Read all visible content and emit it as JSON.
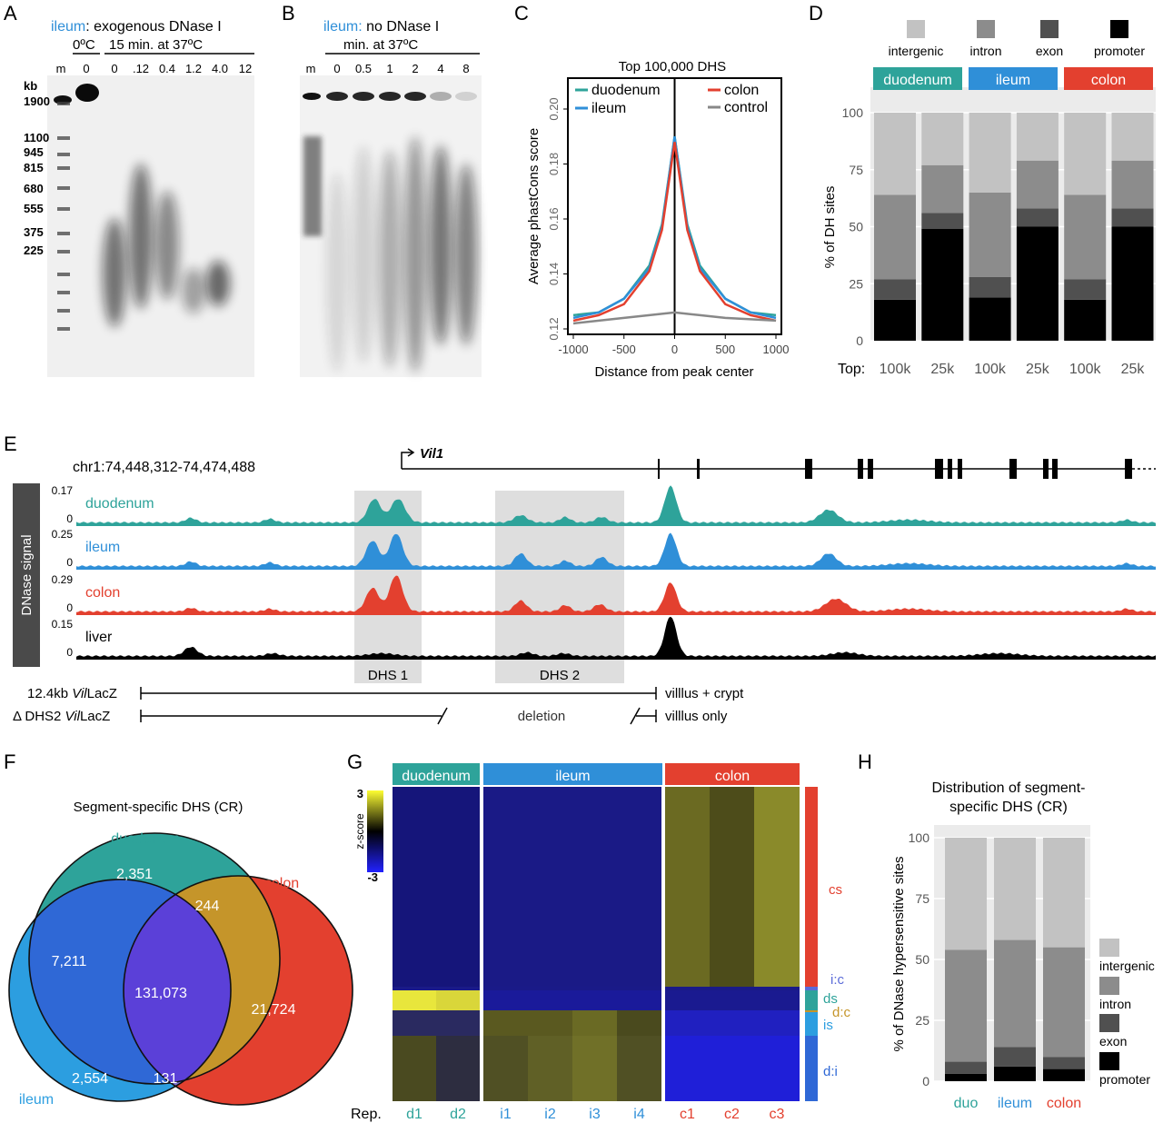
{
  "colors": {
    "duodenum": "#2ea39a",
    "ileum": "#2f8fd8",
    "colon": "#e3402f",
    "control": "#888888",
    "intergenic": "#c2c2c2",
    "intron": "#8c8c8c",
    "exon": "#505050",
    "promoter": "#000000"
  },
  "panelA": {
    "letter": "A",
    "title_tissue": "ileum",
    "title_rest": ": exogenous DNase I",
    "cold": "0ºC",
    "warm": "15 min. at 37ºC",
    "lanes": [
      "m",
      "0",
      "0",
      ".12",
      "0.4",
      "1.2",
      "4.0",
      "12"
    ],
    "kb_label": "kb",
    "markers": [
      "1900",
      "1100",
      "945",
      "815",
      "680",
      "555",
      "375",
      "225"
    ]
  },
  "panelB": {
    "letter": "B",
    "title_tissue": "ileum:",
    "title_rest": " no DNase I",
    "sub": "min. at 37ºC",
    "lanes": [
      "m",
      "0",
      "0.5",
      "1",
      "2",
      "4",
      "8"
    ]
  },
  "panelC": {
    "letter": "C",
    "chart_data": {
      "type": "line",
      "title": "Top 100,000 DHS",
      "xlabel": "Distance from peak center",
      "ylabel": "Average phastCons score",
      "xlim": [
        -1000,
        1000
      ],
      "ylim": [
        0.12,
        0.2
      ],
      "xticks": [
        "-1000",
        "-500",
        "0",
        "500",
        "1000"
      ],
      "yticks": [
        "0.12",
        "0.14",
        "0.16",
        "0.18",
        "0.20"
      ],
      "legend": [
        "duodenum",
        "ileum",
        "colon",
        "control"
      ],
      "series": [
        {
          "name": "duodenum",
          "x": [
            -1000,
            -750,
            -500,
            -250,
            -125,
            0,
            125,
            250,
            500,
            750,
            1000
          ],
          "y": [
            0.125,
            0.126,
            0.131,
            0.143,
            0.158,
            0.19,
            0.158,
            0.143,
            0.131,
            0.126,
            0.125
          ]
        },
        {
          "name": "ileum",
          "x": [
            -1000,
            -750,
            -500,
            -250,
            -125,
            0,
            125,
            250,
            500,
            750,
            1000
          ],
          "y": [
            0.124,
            0.126,
            0.131,
            0.142,
            0.157,
            0.19,
            0.157,
            0.142,
            0.131,
            0.126,
            0.124
          ]
        },
        {
          "name": "colon",
          "x": [
            -1000,
            -750,
            -500,
            -250,
            -125,
            0,
            125,
            250,
            500,
            750,
            1000
          ],
          "y": [
            0.123,
            0.125,
            0.129,
            0.141,
            0.156,
            0.188,
            0.156,
            0.141,
            0.129,
            0.125,
            0.123
          ]
        },
        {
          "name": "control",
          "x": [
            -1000,
            -500,
            -250,
            0,
            250,
            500,
            1000
          ],
          "y": [
            0.122,
            0.124,
            0.125,
            0.126,
            0.125,
            0.124,
            0.123
          ]
        }
      ]
    }
  },
  "panelD": {
    "letter": "D",
    "chart_data": {
      "type": "bar",
      "stacked": true,
      "ylabel": "% of DH sites",
      "yticks": [
        "0",
        "25",
        "50",
        "75",
        "100"
      ],
      "ylim": [
        0,
        100
      ],
      "legend": [
        "intergenic",
        "intron",
        "exon",
        "promoter"
      ],
      "groups": [
        "duodenum",
        "ileum",
        "colon"
      ],
      "categories": [
        "100k",
        "25k",
        "100k",
        "25k",
        "100k",
        "25k"
      ],
      "xprefix": "Top:",
      "series": [
        {
          "name": "promoter",
          "values": [
            18,
            49,
            19,
            50,
            18,
            50
          ]
        },
        {
          "name": "exon",
          "values": [
            9,
            7,
            9,
            8,
            9,
            8
          ]
        },
        {
          "name": "intron",
          "values": [
            37,
            21,
            37,
            21,
            37,
            21
          ]
        },
        {
          "name": "intergenic",
          "values": [
            36,
            23,
            35,
            21,
            36,
            21
          ]
        }
      ]
    }
  },
  "panelE": {
    "letter": "E",
    "locus": "chr1:74,448,312-74,474,488",
    "gene": "Vil1",
    "signal_label": "DNase signal",
    "tracks": [
      {
        "name": "duodenum",
        "max": "0.17",
        "min": "0"
      },
      {
        "name": "ileum",
        "max": "0.25",
        "min": "0"
      },
      {
        "name": "colon",
        "max": "0.29",
        "min": "0"
      },
      {
        "name": "liver",
        "max": "0.15",
        "min": "0"
      }
    ],
    "dhs1": "DHS 1",
    "dhs2": "DHS 2",
    "construct1_pre": "12.4kb ",
    "construct1_it": "Vil",
    "construct1_post": "LacZ",
    "construct1_result": "villlus + crypt",
    "construct2_pre": "Δ DHS2 ",
    "construct2_it": "Vil",
    "construct2_post": "LacZ",
    "construct2_result": "villlus only",
    "deletion": "deletion"
  },
  "panelF": {
    "letter": "F",
    "title": "Segment-specific DHS (CR)",
    "labels": [
      "duodenum",
      "ileum",
      "colon"
    ],
    "counts": {
      "d": "2,351",
      "dc": "244",
      "di": "7,211",
      "dic": "131,073",
      "c": "21,724",
      "i": "2,554",
      "ic": "131"
    }
  },
  "panelG": {
    "letter": "G",
    "groups": [
      "duodenum",
      "ileum",
      "colon"
    ],
    "scale_label": "z-score",
    "scale_max": "3",
    "scale_min": "-3",
    "columns": [
      "d1",
      "d2",
      "i1",
      "i2",
      "i3",
      "i4",
      "c1",
      "c2",
      "c3"
    ],
    "rep_label": "Rep.",
    "clusters": [
      "cs",
      "i:c",
      "ds",
      "d:c",
      "is",
      "d:i"
    ]
  },
  "panelH": {
    "letter": "H",
    "chart_data": {
      "type": "bar",
      "stacked": true,
      "title": "Distribution of segment-specific DHS (CR)",
      "ylabel": "% of DNase hypersensitive sites",
      "yticks": [
        "0",
        "25",
        "50",
        "75",
        "100"
      ],
      "ylim": [
        0,
        100
      ],
      "categories": [
        "duo",
        "ileum",
        "colon"
      ],
      "legend": [
        "intergenic",
        "intron",
        "exon",
        "promoter"
      ],
      "series": [
        {
          "name": "promoter",
          "values": [
            3,
            6,
            5
          ]
        },
        {
          "name": "exon",
          "values": [
            5,
            8,
            5
          ]
        },
        {
          "name": "intron",
          "values": [
            46,
            44,
            45
          ]
        },
        {
          "name": "intergenic",
          "values": [
            46,
            42,
            45
          ]
        }
      ]
    }
  }
}
